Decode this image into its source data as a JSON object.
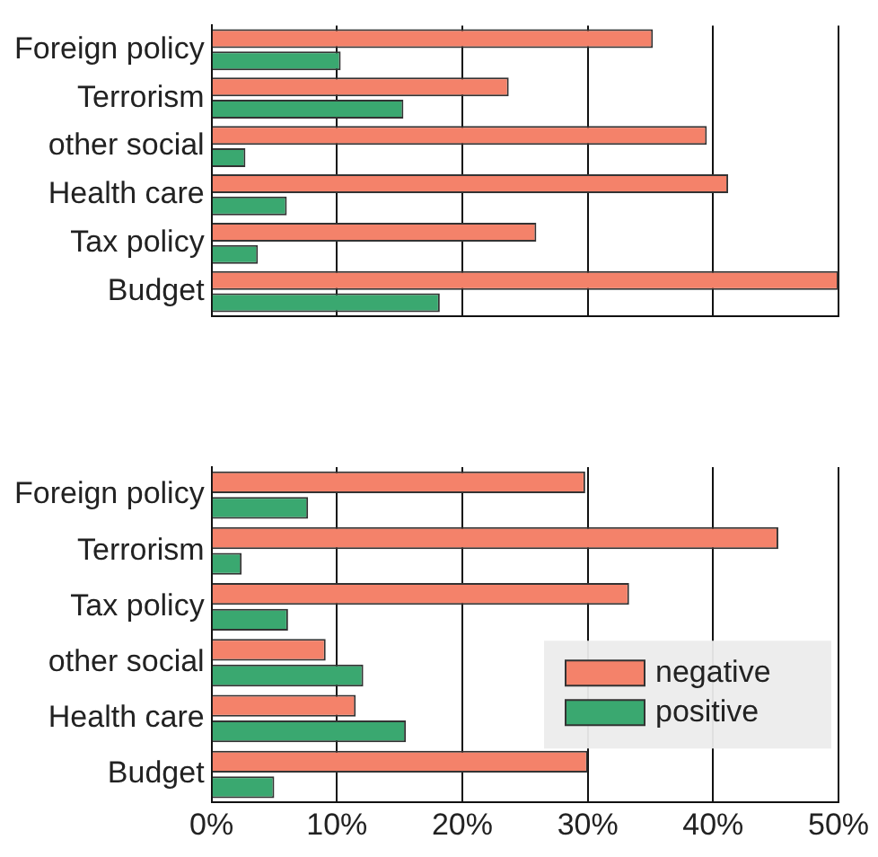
{
  "chart_data": [
    {
      "type": "bar",
      "orientation": "horizontal",
      "categories": [
        "Foreign policy",
        "Terrorism",
        "other social",
        "Health care",
        "Tax policy",
        "Budget"
      ],
      "series": [
        {
          "color": "#f4826a",
          "values": [
            35.2,
            23.7,
            39.5,
            41.2,
            25.9,
            50
          ]
        },
        {
          "color": "#3aa870",
          "values": [
            10.3,
            15.3,
            2.7,
            6.0,
            3.7,
            18.2
          ]
        }
      ],
      "xlim": [
        0,
        50
      ],
      "xticks": [
        {
          "value": 0,
          "label": null
        },
        {
          "value": 10,
          "label": null
        },
        {
          "value": 20,
          "label": null
        },
        {
          "value": 30,
          "label": null
        },
        {
          "value": 40,
          "label": null
        },
        {
          "value": 50,
          "label": null
        }
      ],
      "grid": "x",
      "tick_labels": "y",
      "legend": false
    },
    {
      "type": "bar",
      "orientation": "horizontal",
      "categories": [
        "Foreign policy",
        "Terrorism",
        "Tax policy",
        "other social",
        "Health care",
        "Budget"
      ],
      "series": [
        {
          "name": "negative",
          "color": "#f4826a",
          "values": [
            29.8,
            45.2,
            33.3,
            9.1,
            11.5,
            30.0
          ]
        },
        {
          "name": "positive",
          "color": "#3aa870",
          "values": [
            7.7,
            2.4,
            6.1,
            12.1,
            15.5,
            5.0
          ]
        }
      ],
      "xlim": [
        0,
        50
      ],
      "xticks": [
        {
          "value": 0,
          "label": "0%"
        },
        {
          "value": 10,
          "label": "10%"
        },
        {
          "value": 20,
          "label": "20%"
        },
        {
          "value": 30,
          "label": "30%"
        },
        {
          "value": 40,
          "label": "40%"
        },
        {
          "value": 50,
          "label": "50%"
        }
      ],
      "grid": "x",
      "legend": "bottom right"
    }
  ]
}
